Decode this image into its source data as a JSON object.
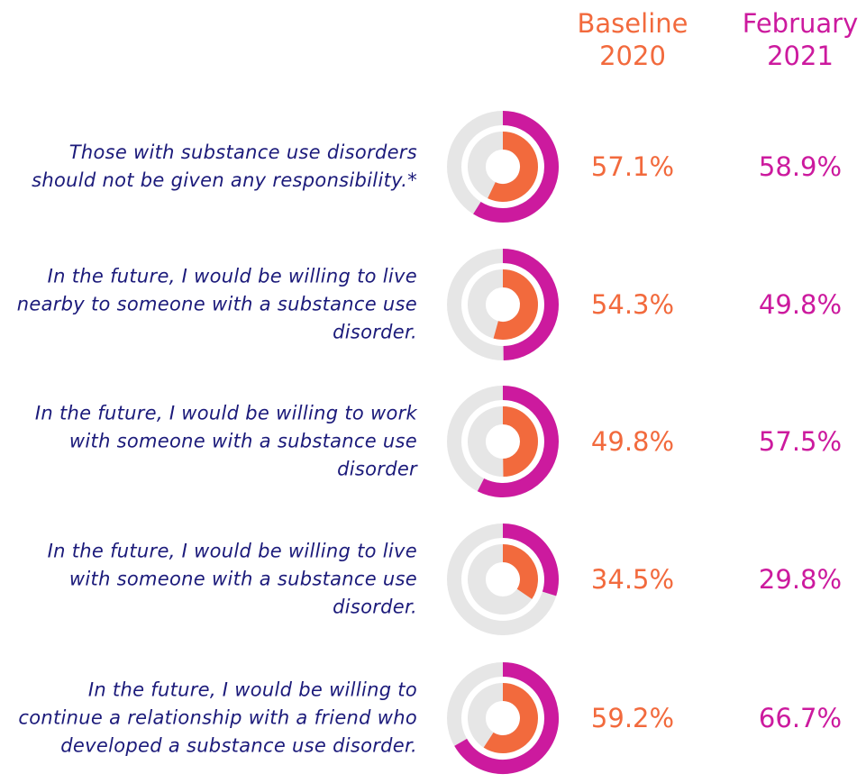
{
  "chart_data": {
    "type": "concentric-donut",
    "categories": [
      "Those with substance use disorders should not be given any responsibility.*",
      "In the future, I would be willing to live nearby to someone with a substance use disorder.",
      "In the future, I would be willing to work with someone with a substance use disorder",
      "In the future, I would be willing to live with someone with a substance use disorder.",
      "In the future, I would be willing to continue a relationship with a friend who developed a substance use disorder."
    ],
    "series": [
      {
        "name": "Baseline 2020",
        "color": "#f26a3d",
        "values": [
          57.1,
          54.3,
          49.8,
          34.5,
          59.2
        ],
        "value_labels": [
          "57.1%",
          "54.3%",
          "49.8%",
          "34.5%",
          "59.2%"
        ]
      },
      {
        "name": "February 2021",
        "color": "#cc1a9e",
        "values": [
          58.9,
          49.8,
          57.5,
          29.8,
          66.7
        ],
        "value_labels": [
          "58.9%",
          "49.8%",
          "57.5%",
          "29.8%",
          "66.7%"
        ]
      }
    ]
  }
}
